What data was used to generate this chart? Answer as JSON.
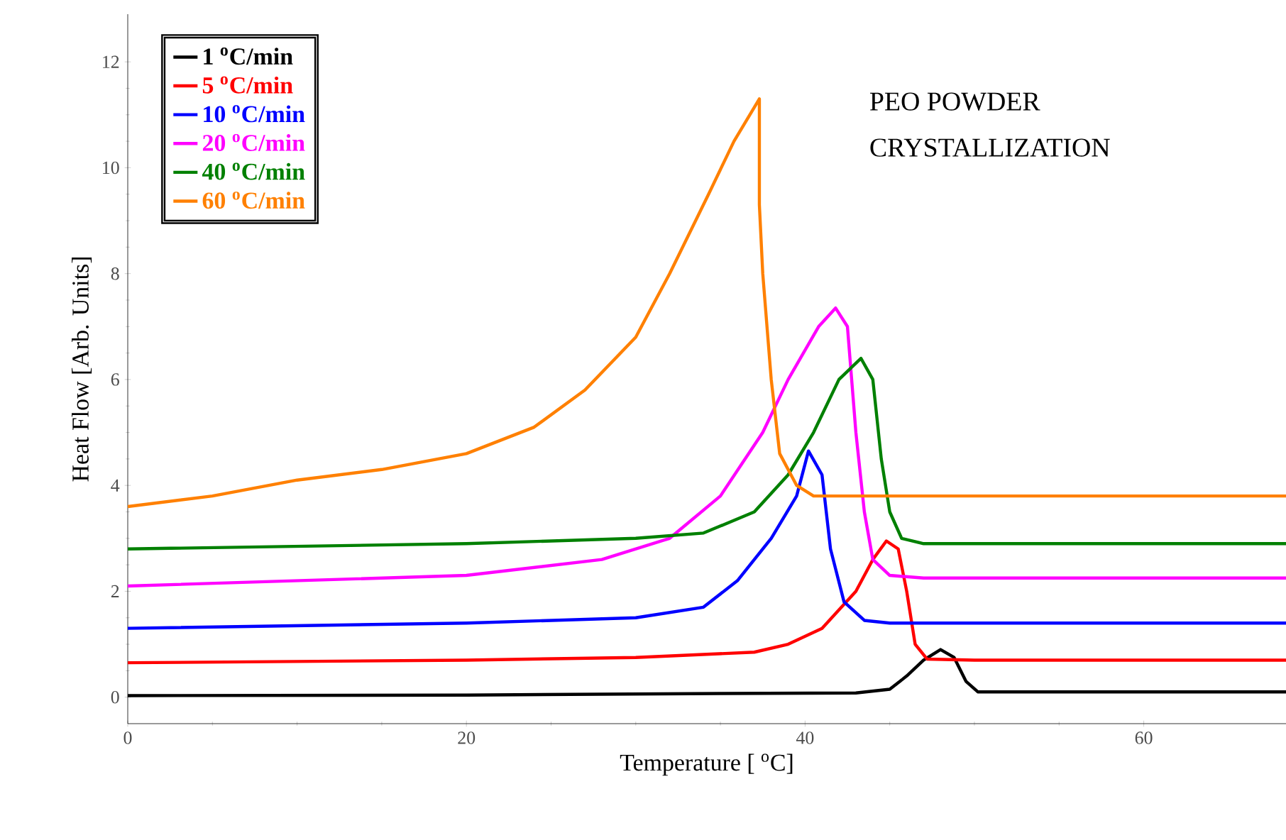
{
  "chart_data": {
    "type": "line",
    "xlabel": "Temperature [ $^{o}$C]",
    "ylabel": "Heat Flow [Arb. Units]",
    "annotations": [
      "PEO POWDER",
      "CRYSTALLIZATION"
    ],
    "xlim": [
      0,
      68.4
    ],
    "ylim": [
      -0.5,
      12.9
    ],
    "xticks": [
      0,
      20,
      40,
      60
    ],
    "yticks": [
      0,
      2,
      4,
      6,
      8,
      10,
      12
    ],
    "legend": "top left",
    "grid": false,
    "series": [
      {
        "name": "1 $^{o}$C/min",
        "color": "#000000",
        "x": [
          0,
          20,
          35,
          43,
          45,
          46,
          47,
          48,
          48.8,
          49.5,
          50.2,
          55,
          68.4
        ],
        "values": [
          0.03,
          0.04,
          0.07,
          0.08,
          0.15,
          0.4,
          0.7,
          0.9,
          0.75,
          0.3,
          0.1,
          0.1,
          0.1
        ]
      },
      {
        "name": "5 $^{o}$C/min",
        "color": "#ff0000",
        "x": [
          0,
          20,
          30,
          37,
          39,
          41,
          43,
          44,
          44.8,
          45.5,
          46,
          46.5,
          47.2,
          50,
          68.4
        ],
        "values": [
          0.65,
          0.7,
          0.75,
          0.85,
          1.0,
          1.3,
          2.0,
          2.6,
          2.95,
          2.8,
          2.0,
          1.0,
          0.72,
          0.7,
          0.7
        ]
      },
      {
        "name": "10 $^{o}$C/min",
        "color": "#0000ff",
        "x": [
          0,
          20,
          30,
          34,
          36,
          38,
          39.5,
          40.2,
          41,
          41.5,
          42.3,
          43.5,
          45,
          68.4
        ],
        "values": [
          1.3,
          1.4,
          1.5,
          1.7,
          2.2,
          3.0,
          3.8,
          4.65,
          4.2,
          2.8,
          1.8,
          1.45,
          1.4,
          1.4
        ]
      },
      {
        "name": "20 $^{o}$C/min",
        "color": "#ff00ff",
        "x": [
          0,
          20,
          28,
          32,
          35,
          37.5,
          39,
          40.8,
          41.8,
          42.5,
          43,
          43.5,
          44,
          45,
          47,
          68.4
        ],
        "values": [
          2.1,
          2.3,
          2.6,
          3.0,
          3.8,
          5.0,
          6.0,
          7.0,
          7.35,
          7.0,
          5.0,
          3.5,
          2.6,
          2.3,
          2.25,
          2.25
        ]
      },
      {
        "name": "40 $^{o}$C/min",
        "color": "#008000",
        "x": [
          0,
          20,
          30,
          34,
          37,
          39,
          40.5,
          42,
          43.3,
          44,
          44.5,
          45,
          45.7,
          47,
          68.4
        ],
        "values": [
          2.8,
          2.9,
          3.0,
          3.1,
          3.5,
          4.2,
          5.0,
          6.0,
          6.4,
          6.0,
          4.5,
          3.5,
          3.0,
          2.9,
          2.9
        ]
      },
      {
        "name": "60 $^{o}$C/min",
        "color": "#ff8000",
        "x": [
          0,
          5,
          10,
          15,
          20,
          24,
          27,
          30,
          32,
          34.3,
          35.8,
          37.3,
          37.3,
          37.5,
          38,
          38.5,
          39.5,
          40.5,
          68.4
        ],
        "values": [
          3.6,
          3.8,
          4.1,
          4.3,
          4.6,
          5.1,
          5.8,
          6.8,
          8.0,
          9.5,
          10.5,
          11.3,
          9.3,
          8.0,
          6.0,
          4.6,
          4.0,
          3.8,
          3.8
        ]
      }
    ]
  }
}
